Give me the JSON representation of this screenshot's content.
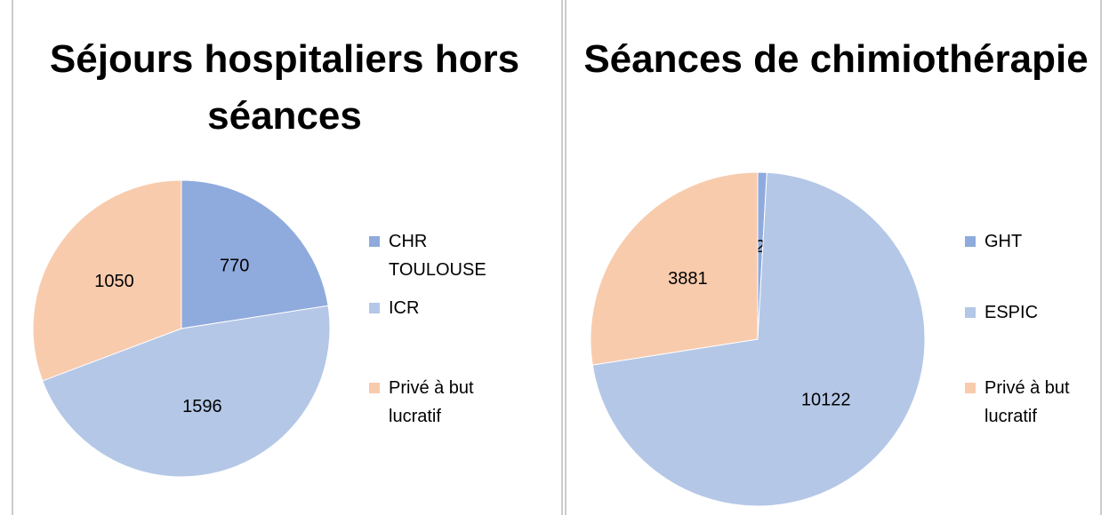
{
  "chart_data": [
    {
      "type": "pie",
      "title": "Séjours hospitaliers hors séances",
      "categories": [
        "CHR TOULOUSE",
        "ICR",
        "Privé à but lucratif"
      ],
      "values": [
        770,
        1596,
        1050
      ],
      "colors": [
        "#8faadc",
        "#b4c7e7",
        "#f8cbad"
      ]
    },
    {
      "type": "pie",
      "title": "Séances de chimiothérapie",
      "categories": [
        "GHT",
        "ESPIC",
        "Privé à but lucratif"
      ],
      "values": [
        123,
        10122,
        3881
      ],
      "colors": [
        "#8faadc",
        "#b4c7e7",
        "#f8cbad"
      ]
    }
  ]
}
